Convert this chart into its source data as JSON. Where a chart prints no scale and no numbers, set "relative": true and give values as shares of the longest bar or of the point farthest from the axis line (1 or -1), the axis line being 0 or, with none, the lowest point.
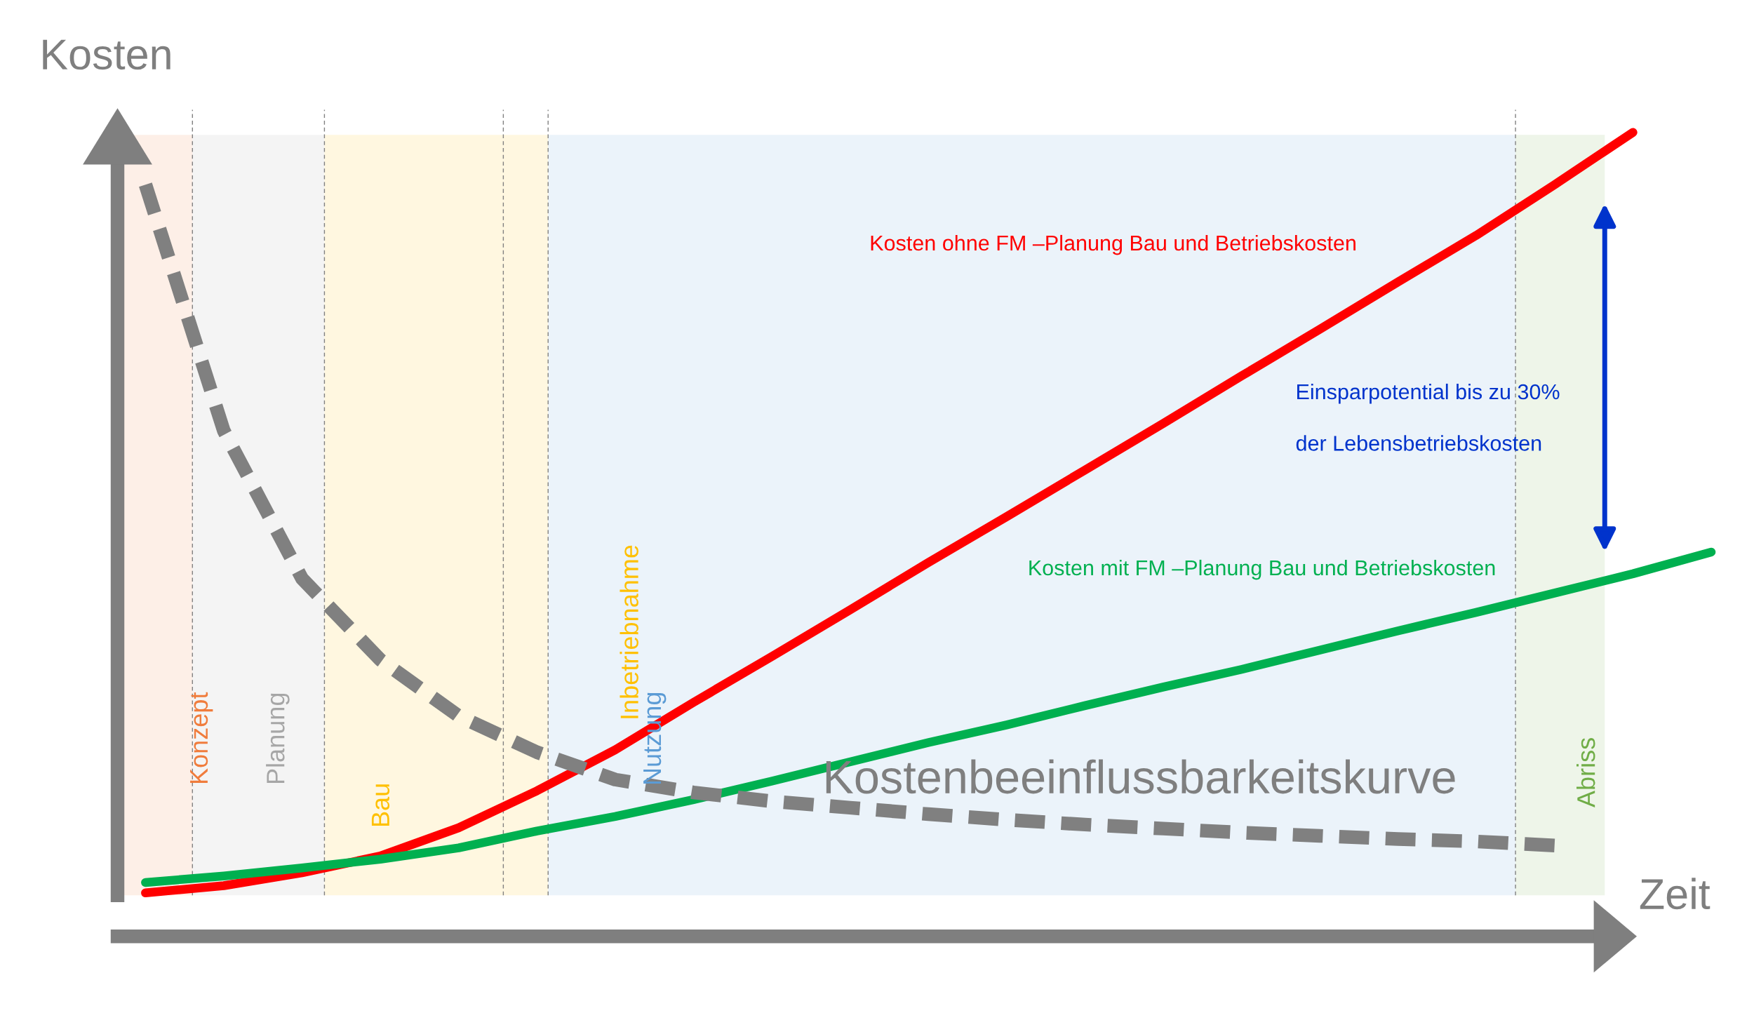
{
  "chart_data": {
    "type": "line",
    "relative": true,
    "xlabel": "Zeit",
    "ylabel": "Kosten",
    "legend": false,
    "grid": false,
    "marker": "none",
    "categories": [
      null,
      null,
      null,
      null,
      null,
      null,
      null,
      null,
      null,
      null,
      null,
      null,
      null,
      null,
      null,
      null,
      null,
      null,
      null,
      null,
      null
    ],
    "series": [
      {
        "name": "Kosten ohne FM –Planung Bau und Betriebskosten",
        "color": "#ff0000",
        "values": [
          0.054,
          0.063,
          0.079,
          0.1,
          0.135,
          0.181,
          0.232,
          0.291,
          0.348,
          0.406,
          0.465,
          0.522,
          0.58,
          0.638,
          0.697,
          0.755,
          0.814,
          0.872,
          0.935,
          1.0,
          null
        ]
      },
      {
        "name": "Kosten mit FM –Planung Bau und Betriebskosten",
        "color": "#00b050",
        "values": [
          0.067,
          0.075,
          0.085,
          0.096,
          0.11,
          0.131,
          0.149,
          0.17,
          0.193,
          0.217,
          0.241,
          0.263,
          0.287,
          0.31,
          0.332,
          0.356,
          0.38,
          0.403,
          0.427,
          0.451,
          0.478
        ]
      },
      {
        "name": "Kostenbeeinflussbarkeitskurve",
        "color": "#808080",
        "line_style": "dashed",
        "values": [
          0.935,
          0.629,
          0.445,
          0.344,
          0.274,
          0.229,
          0.195,
          0.179,
          0.168,
          0.16,
          0.152,
          0.145,
          0.139,
          0.134,
          0.129,
          0.125,
          0.121,
          0.118,
          0.113,
          null,
          null
        ]
      }
    ],
    "annotations": [
      "Konzept",
      "Planung",
      "Bau",
      "Inbetriebnahme",
      "Nutzung",
      "Abriss",
      "Einsparpotential bis zu 30%",
      "der Lebensbetriebskosten"
    ]
  }
}
